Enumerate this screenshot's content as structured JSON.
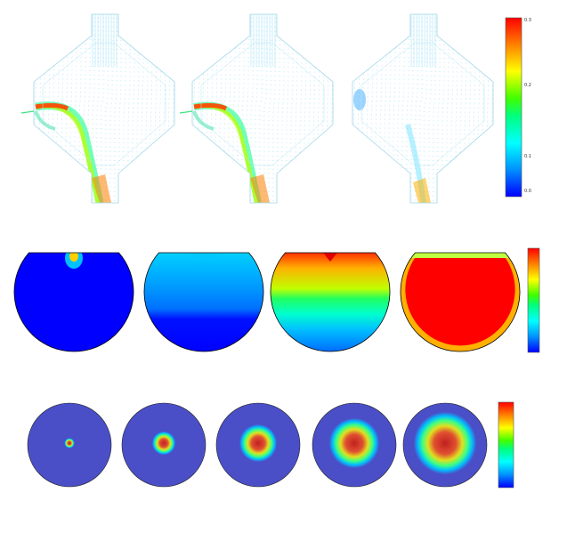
{
  "figure": {
    "row1": {
      "panels": [
        {
          "jet_strength": 1.0,
          "jet_present": true
        },
        {
          "jet_strength": 0.9,
          "jet_present": true
        },
        {
          "jet_strength": 0.0,
          "jet_present": false
        }
      ],
      "colorbar": {
        "ticks": [
          "0.0",
          "0.1",
          "0.2",
          "0.3"
        ]
      }
    },
    "row2": {
      "panels": [
        {
          "fill_level": 0.05
        },
        {
          "fill_level": 0.35
        },
        {
          "fill_level": 0.65
        },
        {
          "fill_level": 0.95
        }
      ]
    },
    "row3": {
      "panels": [
        {
          "spot_size": 0.12
        },
        {
          "spot_size": 0.28
        },
        {
          "spot_size": 0.45
        },
        {
          "spot_size": 0.6
        },
        {
          "spot_size": 0.75
        }
      ]
    },
    "colors": {
      "rainbow": [
        "#0000ff",
        "#0080ff",
        "#00ffff",
        "#00ff80",
        "#00ff00",
        "#80ff00",
        "#ffff00",
        "#ff8000",
        "#ff0000"
      ],
      "background_blue": "#0000ff",
      "disc_blue": "#4a4fc8"
    }
  }
}
